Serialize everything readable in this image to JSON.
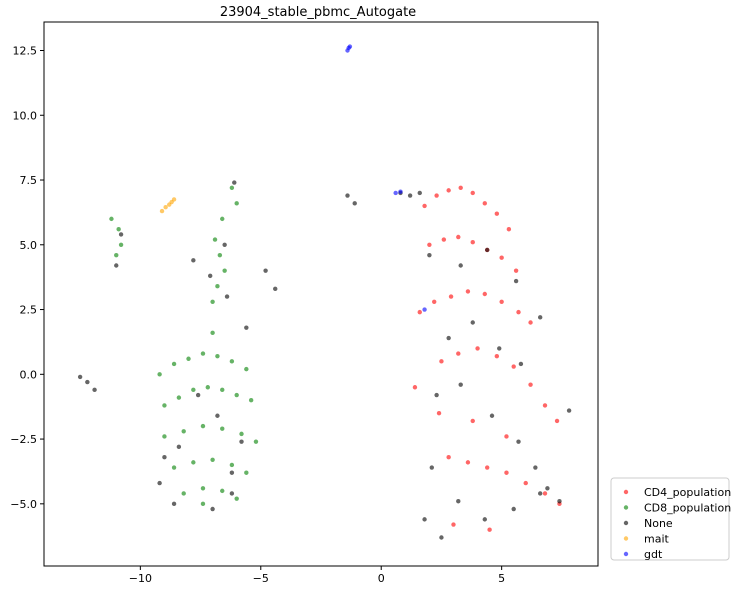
{
  "chart_data": {
    "type": "scatter",
    "title": "23904_stable_pbmc_Autogate",
    "xlabel": "",
    "ylabel": "",
    "xlim": [
      -14.0,
      9.0
    ],
    "ylim": [
      -7.4,
      13.6
    ],
    "xticks": [
      -10,
      -5,
      0,
      5
    ],
    "xtick_labels": [
      "−10",
      "−5",
      "0",
      "5"
    ],
    "yticks": [
      -5.0,
      -2.5,
      0.0,
      2.5,
      5.0,
      7.5,
      10.0,
      12.5
    ],
    "ytick_labels": [
      "−5.0",
      "−2.5",
      "0.0",
      "2.5",
      "5.0",
      "7.5",
      "10.0",
      "12.5"
    ],
    "grid": false,
    "legend_position": "outside-lower-right",
    "series": [
      {
        "name": "CD4_population",
        "color": "#ff0000",
        "x": [
          1.8,
          2.3,
          2.8,
          3.3,
          3.8,
          4.3,
          4.8,
          5.3,
          2.0,
          2.6,
          3.2,
          3.8,
          4.4,
          5.0,
          5.6,
          2.2,
          2.9,
          3.6,
          4.3,
          5.0,
          5.7,
          6.2,
          2.5,
          3.2,
          4.0,
          4.8,
          5.5,
          6.2,
          6.8,
          7.3,
          2.8,
          3.6,
          4.4,
          5.2,
          6.0,
          6.8,
          7.4,
          1.6,
          1.4,
          3.0,
          4.5,
          2.4,
          3.8,
          5.2
        ],
        "y": [
          6.5,
          6.9,
          7.1,
          7.2,
          7.0,
          6.6,
          6.2,
          5.6,
          5.0,
          5.2,
          5.3,
          5.1,
          4.8,
          4.5,
          4.0,
          2.8,
          3.0,
          3.2,
          3.1,
          2.8,
          2.4,
          2.0,
          0.5,
          0.8,
          1.0,
          0.7,
          0.3,
          -0.4,
          -1.2,
          -1.8,
          -3.2,
          -3.4,
          -3.6,
          -3.8,
          -4.2,
          -4.6,
          -5.0,
          2.4,
          -0.5,
          -5.8,
          -6.0,
          -1.5,
          -1.8,
          -2.4
        ]
      },
      {
        "name": "CD8_population",
        "color": "#008000",
        "x": [
          -11.2,
          -10.9,
          -10.8,
          -11.0,
          -6.2,
          -6.0,
          -6.6,
          -6.9,
          -6.7,
          -6.5,
          -6.8,
          -7.0,
          -9.2,
          -8.6,
          -8.0,
          -7.4,
          -6.8,
          -6.2,
          -5.6,
          -9.0,
          -8.4,
          -7.8,
          -7.2,
          -6.6,
          -6.0,
          -5.4,
          -9.0,
          -8.2,
          -7.4,
          -6.6,
          -5.8,
          -5.2,
          -8.6,
          -7.8,
          -7.0,
          -6.2,
          -5.6,
          -8.2,
          -7.4,
          -6.6,
          -6.0,
          -7.4,
          -7.0
        ],
        "y": [
          6.0,
          5.6,
          5.0,
          4.6,
          7.2,
          6.6,
          6.0,
          5.2,
          4.6,
          4.0,
          3.4,
          2.8,
          0.0,
          0.4,
          0.6,
          0.8,
          0.7,
          0.5,
          0.2,
          -1.2,
          -0.9,
          -0.6,
          -0.5,
          -0.6,
          -0.8,
          -1.0,
          -2.4,
          -2.2,
          -2.0,
          -2.1,
          -2.3,
          -2.6,
          -3.6,
          -3.4,
          -3.3,
          -3.5,
          -3.8,
          -4.6,
          -4.4,
          -4.5,
          -4.8,
          -5.0,
          1.6
        ]
      },
      {
        "name": "None",
        "color": "#000000",
        "x": [
          -12.5,
          -12.2,
          -11.9,
          -11.0,
          -10.8,
          -6.1,
          -6.5,
          -4.8,
          -4.4,
          -1.4,
          -1.1,
          0.8,
          1.2,
          1.6,
          1.8,
          2.5,
          2.0,
          3.3,
          4.4,
          5.6,
          6.6,
          2.8,
          3.8,
          4.9,
          5.8,
          2.3,
          3.3,
          4.6,
          5.7,
          6.4,
          6.9,
          2.1,
          3.2,
          4.3,
          5.5,
          6.6,
          7.4,
          7.8,
          -7.8,
          -7.1,
          -6.4,
          -5.6,
          -8.6,
          -9.2,
          -7.0,
          -6.2,
          -8.4,
          -9.0,
          -5.8,
          -7.6,
          -6.8,
          -6.2
        ],
        "y": [
          -0.1,
          -0.3,
          -0.6,
          4.2,
          5.4,
          7.4,
          5.0,
          4.0,
          3.3,
          6.9,
          6.6,
          7.0,
          6.9,
          7.0,
          -5.6,
          -6.3,
          4.6,
          4.2,
          4.8,
          3.6,
          2.2,
          1.4,
          2.0,
          1.0,
          0.4,
          -0.8,
          -0.4,
          -1.6,
          -2.6,
          -3.6,
          -4.4,
          -3.6,
          -4.9,
          -5.6,
          -5.2,
          -4.6,
          -4.9,
          -1.4,
          4.4,
          3.8,
          3.0,
          1.8,
          -5.0,
          -4.2,
          -5.2,
          -4.6,
          -2.8,
          -3.2,
          -2.6,
          -0.8,
          -1.6,
          -3.8
        ]
      },
      {
        "name": "mait",
        "color": "#ffa500",
        "x": [
          -9.1,
          -8.95,
          -8.8,
          -8.7,
          -8.6
        ],
        "y": [
          6.3,
          6.45,
          6.55,
          6.65,
          6.75
        ]
      },
      {
        "name": "gdt",
        "color": "#0000ff",
        "x": [
          -1.4,
          -1.35,
          -1.3,
          0.6,
          0.8,
          1.8
        ],
        "y": [
          12.5,
          12.6,
          12.65,
          7.0,
          7.05,
          2.5
        ]
      }
    ]
  }
}
